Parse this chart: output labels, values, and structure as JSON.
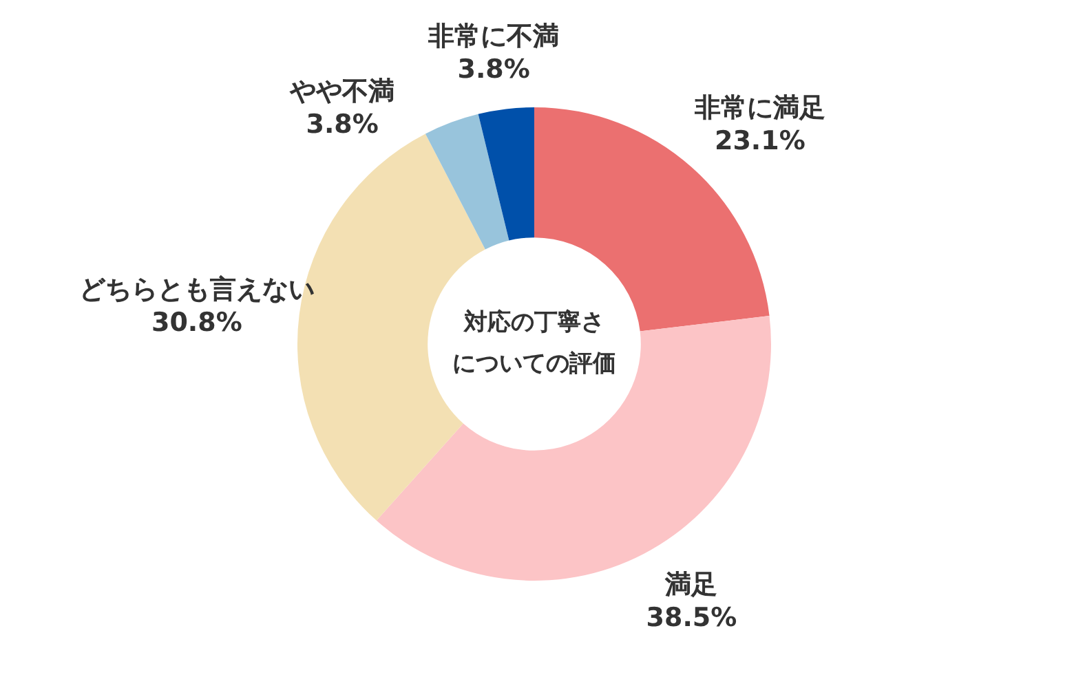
{
  "chart_data": {
    "type": "donut",
    "title": "対応の丁寧さについての評価",
    "categories": [
      "非常に満足",
      "満足",
      "どちらとも言えない",
      "やや不満",
      "非常に不満"
    ],
    "values": [
      23.1,
      38.5,
      30.8,
      3.8,
      3.8
    ],
    "value_labels": [
      "23.1%",
      "38.5%",
      "30.8%",
      "3.8%",
      "3.8%"
    ],
    "colors": [
      "#eb7070",
      "#fcc4c6",
      "#f3e0b3",
      "#98c4dc",
      "#0050aa"
    ],
    "legend": false
  }
}
